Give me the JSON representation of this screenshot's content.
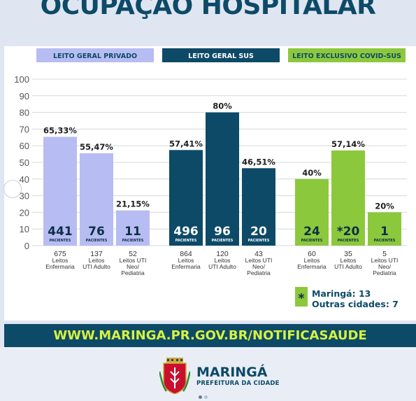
{
  "title": "OCUPAÇÃO HOSPITALAR",
  "colors": {
    "privado": "#b7bdf2",
    "sus": "#0d4a68",
    "covid": "#8cc83c",
    "covid_header_text": "#0d4a68"
  },
  "chart_data": {
    "type": "bar",
    "ylim": [
      0,
      100
    ],
    "y_ticks": [
      "0",
      "10",
      "20",
      "30",
      "40",
      "50",
      "60",
      "70",
      "80",
      "90",
      "100"
    ],
    "grid": true,
    "unit_label": "PACIENTES",
    "groups": [
      {
        "name": "LEITO GERAL PRIVADO",
        "color_key": "privado",
        "bars": [
          {
            "percent": 65.33,
            "pct_label": "65,33%",
            "patients": "441",
            "beds": "675",
            "category": [
              "Leitos",
              "Enfermaria"
            ]
          },
          {
            "percent": 55.47,
            "pct_label": "55,47%",
            "patients": "76",
            "beds": "137",
            "category": [
              "Leitos",
              "UTI Adulto"
            ]
          },
          {
            "percent": 21.15,
            "pct_label": "21,15%",
            "patients": "11",
            "beds": "52",
            "category": [
              "Leitos UTI",
              "Neo/",
              "Pediatria"
            ]
          }
        ]
      },
      {
        "name": "LEITO GERAL SUS",
        "color_key": "sus",
        "bars": [
          {
            "percent": 57.41,
            "pct_label": "57,41%",
            "patients": "496",
            "beds": "864",
            "category": [
              "Leitos",
              "Enfermaria"
            ]
          },
          {
            "percent": 80,
            "pct_label": "80%",
            "patients": "96",
            "beds": "120",
            "category": [
              "Leitos",
              "UTI Adulto"
            ]
          },
          {
            "percent": 46.51,
            "pct_label": "46,51%",
            "patients": "20",
            "beds": "43",
            "category": [
              "Leitos UTI",
              "Neo/",
              "Pediatria"
            ]
          }
        ]
      },
      {
        "name": "LEITO EXCLUSIVO COVID-SUS",
        "color_key": "covid",
        "bars": [
          {
            "percent": 40,
            "pct_label": "40%",
            "patients": "24",
            "beds": "60",
            "category": [
              "Leitos",
              "Enfermaria"
            ]
          },
          {
            "percent": 57.14,
            "pct_label": "57,14%",
            "patients": "*20",
            "beds": "35",
            "category": [
              "Leitos",
              "UTI Adulto"
            ]
          },
          {
            "percent": 20,
            "pct_label": "20%",
            "patients": "1",
            "beds": "5",
            "category": [
              "Leitos UTI",
              "Neo/",
              "Pediatria"
            ]
          }
        ]
      }
    ],
    "note": {
      "marker": "*",
      "lines": [
        "Maringá: 13",
        "Outras cidades: 7"
      ]
    }
  },
  "footer": {
    "url": "WWW.MARINGA.PR.GOV.BR/NOTIFICASAUDE",
    "brand": "MARINGÁ",
    "brand_sub": "PREFEITURA DA CIDADE"
  }
}
